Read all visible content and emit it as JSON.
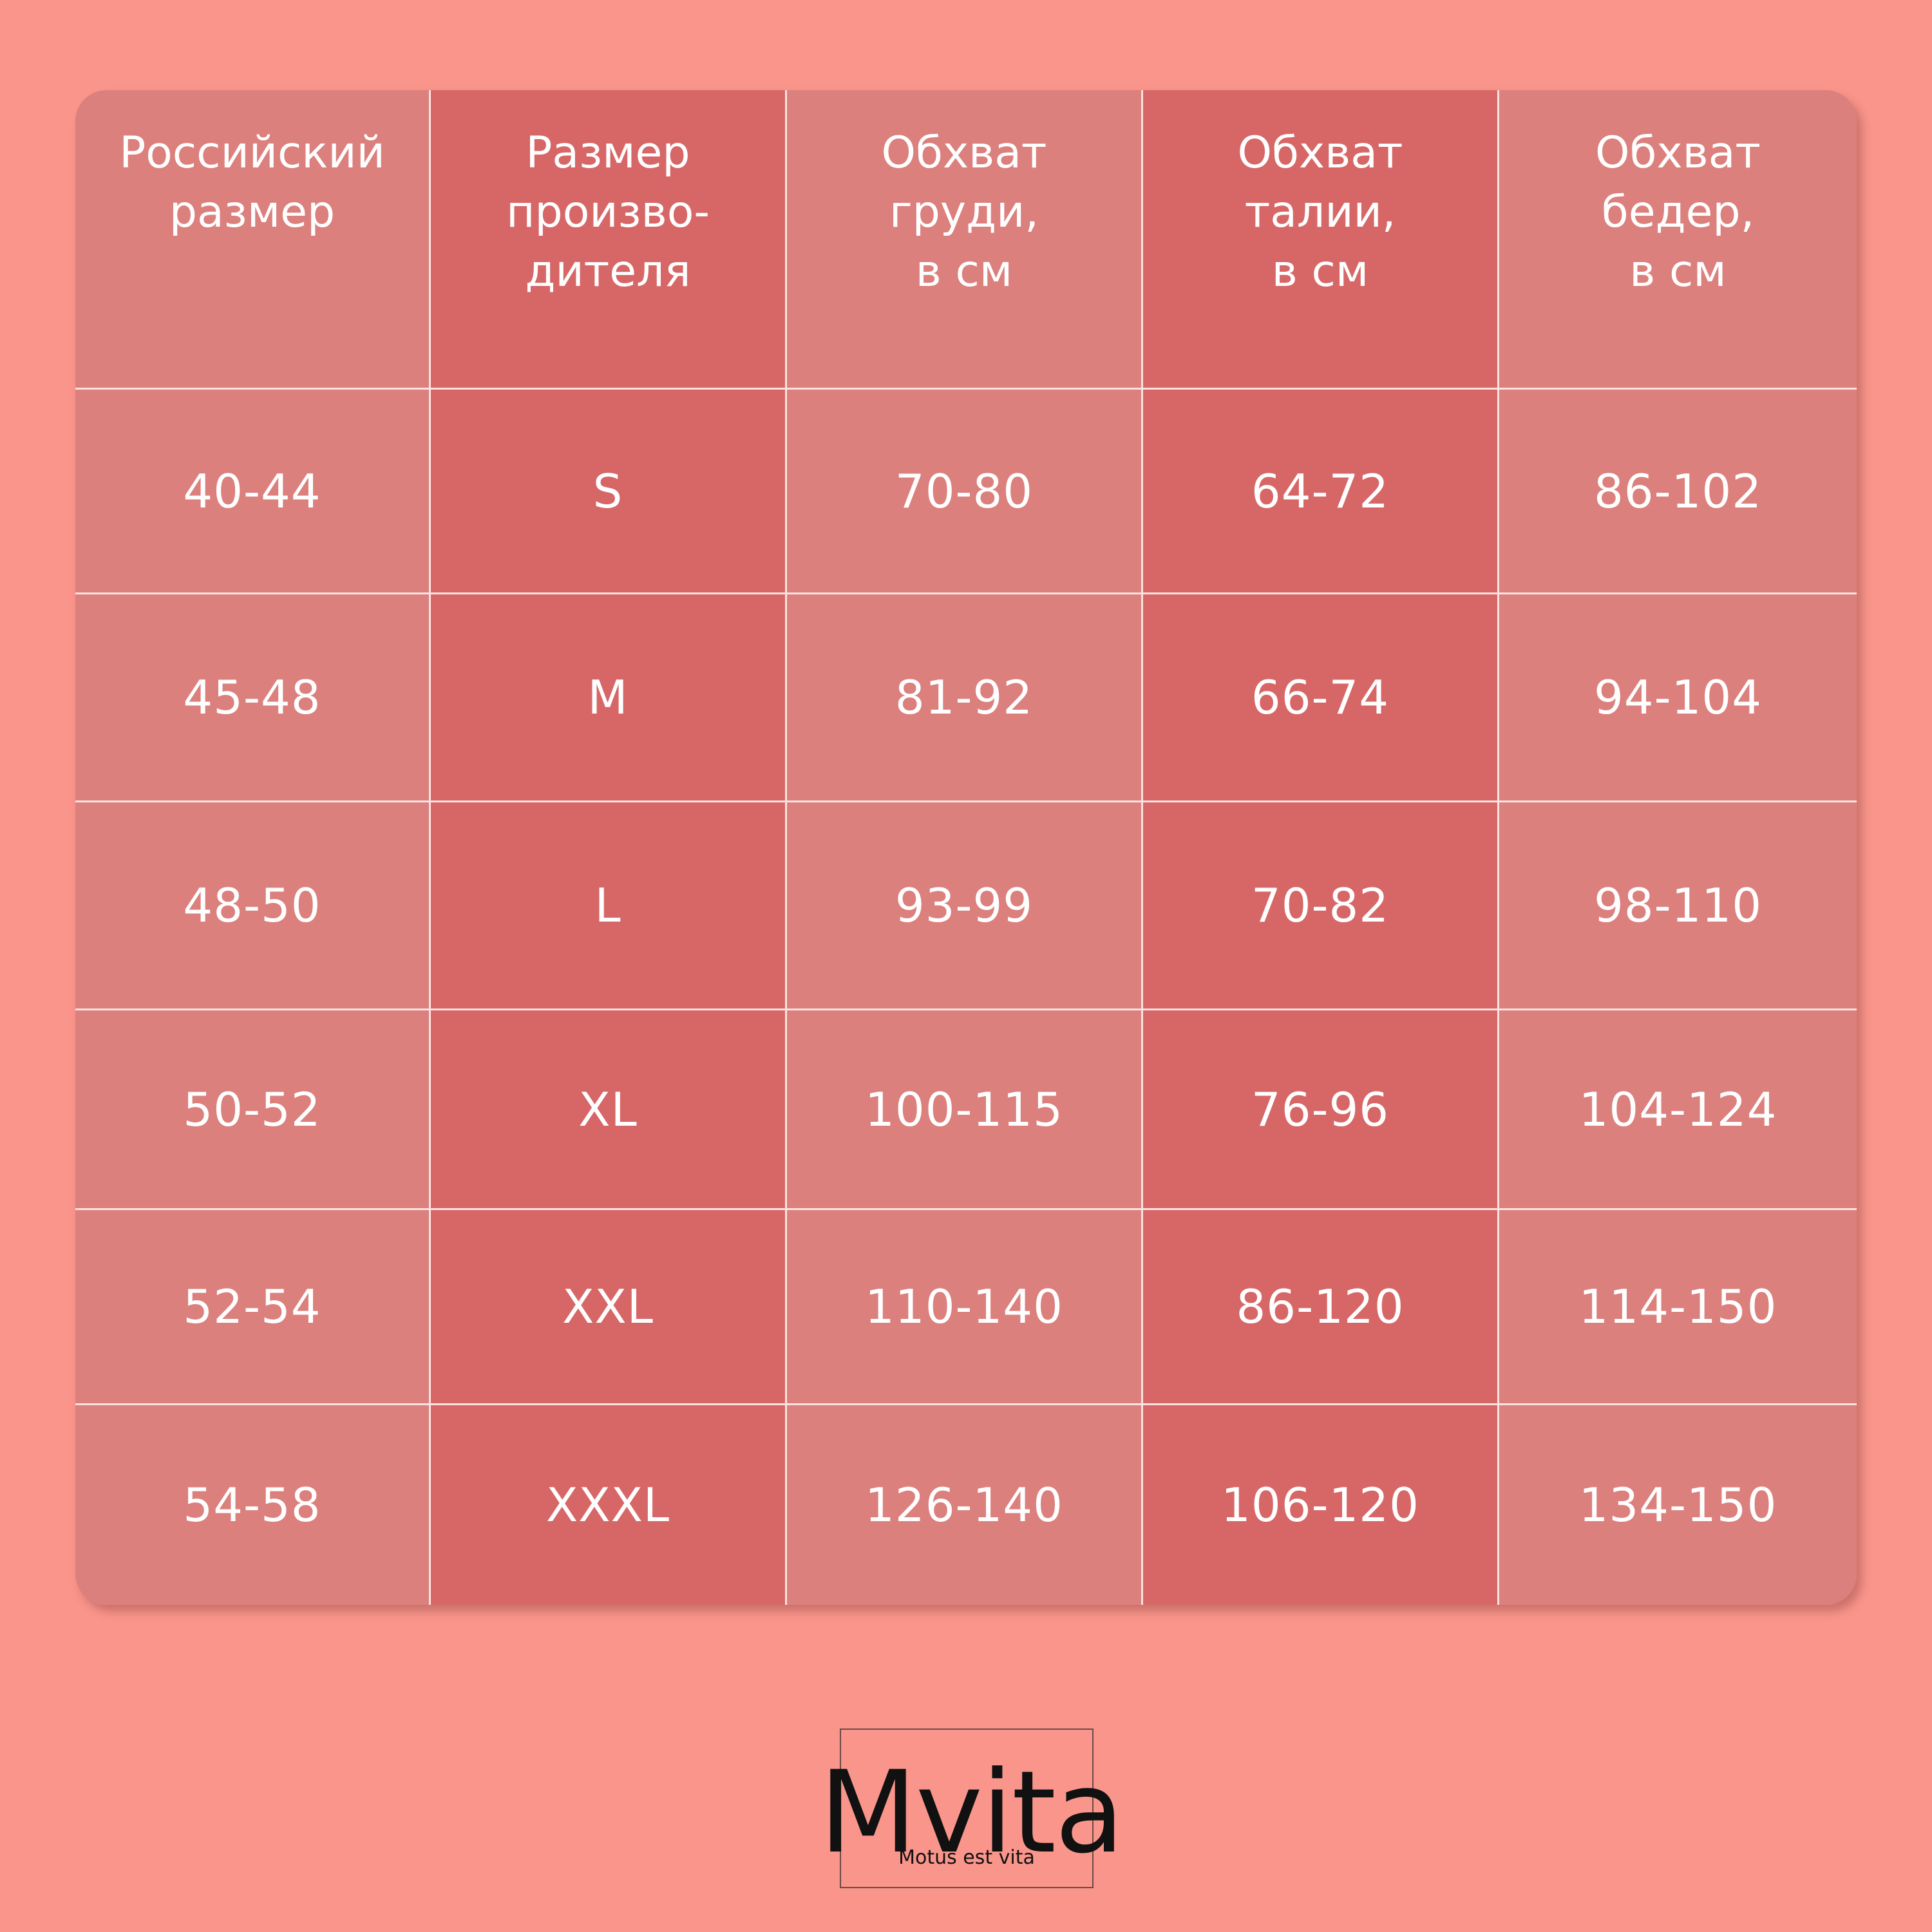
{
  "table": {
    "headers": [
      "Российский\nразмер",
      "Размер\nпроизво-\nдителя",
      "Обхват\nгруди,\nв см",
      "Обхват\nталии,\nв см",
      "Обхват\nбедер,\nв см"
    ],
    "rows": [
      [
        "40-44",
        "S",
        "70-80",
        "64-72",
        "86-102"
      ],
      [
        "45-48",
        "M",
        "81-92",
        "66-74",
        "94-104"
      ],
      [
        "48-50",
        "L",
        "93-99",
        "70-82",
        "98-110"
      ],
      [
        "50-52",
        "XL",
        "100-115",
        "76-96",
        "104-124"
      ],
      [
        "52-54",
        "XXL",
        "110-140",
        "86-120",
        "114-150"
      ],
      [
        "54-58",
        "XXXL",
        "126-140",
        "106-120",
        "134-150"
      ]
    ]
  },
  "brand": {
    "name": "Mvita",
    "tagline": "Motus est vita"
  },
  "colors": {
    "background": "#f9958b",
    "column_light": "#db807d",
    "column_dark": "#d76767",
    "text": "#ffffff"
  }
}
